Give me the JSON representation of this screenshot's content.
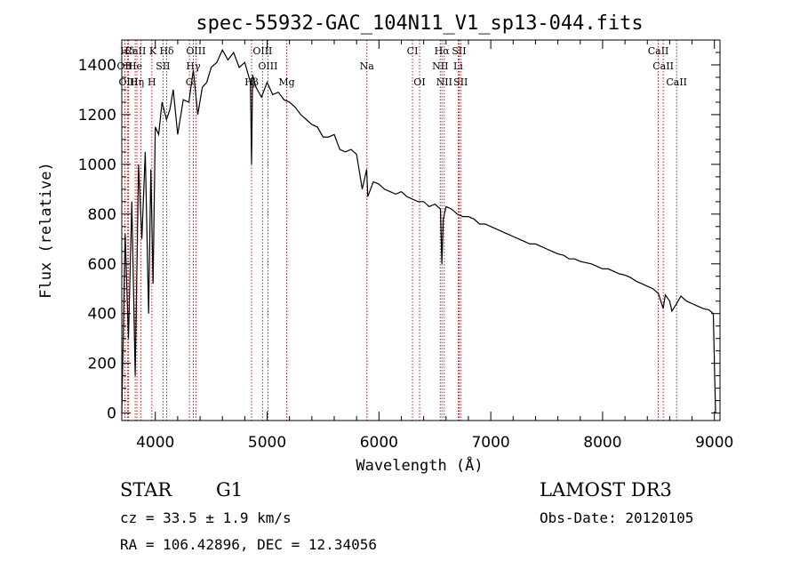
{
  "chart_data": {
    "type": "line",
    "title": "spec-55932-GAC_104N11_V1_sp13-044.fits",
    "xlabel": "Wavelength (Å)",
    "ylabel": "Flux (relative)",
    "xlim": [
      3700,
      9050
    ],
    "ylim": [
      -30,
      1500
    ],
    "xticks": [
      4000,
      5000,
      6000,
      7000,
      8000,
      9000
    ],
    "yticks": [
      0,
      200,
      400,
      600,
      800,
      1000,
      1200,
      1400
    ],
    "series": [
      {
        "name": "flux",
        "x": [
          3700,
          3730,
          3760,
          3790,
          3820,
          3850,
          3880,
          3910,
          3940,
          3960,
          3980,
          4000,
          4030,
          4060,
          4100,
          4130,
          4160,
          4200,
          4250,
          4300,
          4340,
          4380,
          4420,
          4460,
          4500,
          4550,
          4600,
          4650,
          4700,
          4750,
          4800,
          4850,
          4861,
          4870,
          4900,
          4950,
          5000,
          5050,
          5100,
          5150,
          5200,
          5250,
          5300,
          5350,
          5400,
          5450,
          5500,
          5550,
          5600,
          5650,
          5700,
          5750,
          5800,
          5850,
          5890,
          5900,
          5950,
          6000,
          6050,
          6100,
          6150,
          6200,
          6250,
          6300,
          6350,
          6400,
          6450,
          6500,
          6550,
          6563,
          6575,
          6600,
          6650,
          6700,
          6750,
          6800,
          6850,
          6900,
          6950,
          7000,
          7050,
          7100,
          7150,
          7200,
          7250,
          7300,
          7350,
          7400,
          7450,
          7500,
          7550,
          7600,
          7650,
          7700,
          7750,
          7800,
          7850,
          7900,
          7950,
          8000,
          8050,
          8100,
          8150,
          8200,
          8250,
          8300,
          8350,
          8400,
          8450,
          8500,
          8542,
          8560,
          8600,
          8620,
          8662,
          8700,
          8750,
          8800,
          8850,
          8900,
          8950,
          8990,
          9000,
          9010
        ],
        "y": [
          0,
          720,
          300,
          850,
          150,
          1000,
          700,
          1050,
          400,
          980,
          520,
          1150,
          1120,
          1250,
          1180,
          1220,
          1300,
          1120,
          1260,
          1250,
          1380,
          1200,
          1310,
          1330,
          1390,
          1410,
          1460,
          1420,
          1450,
          1390,
          1410,
          1330,
          1000,
          1360,
          1310,
          1270,
          1330,
          1280,
          1290,
          1260,
          1250,
          1230,
          1200,
          1180,
          1160,
          1150,
          1110,
          1110,
          1120,
          1060,
          1050,
          1060,
          1040,
          900,
          980,
          870,
          930,
          920,
          900,
          890,
          880,
          890,
          870,
          860,
          850,
          850,
          830,
          840,
          820,
          600,
          780,
          830,
          820,
          800,
          790,
          790,
          780,
          760,
          760,
          750,
          740,
          730,
          720,
          710,
          700,
          690,
          680,
          680,
          670,
          660,
          650,
          640,
          635,
          620,
          620,
          610,
          605,
          600,
          590,
          580,
          580,
          570,
          560,
          555,
          545,
          530,
          520,
          510,
          500,
          480,
          420,
          475,
          450,
          410,
          440,
          470,
          450,
          440,
          430,
          420,
          415,
          400,
          200,
          0
        ]
      }
    ],
    "lines": [
      {
        "name": "Hδ",
        "x": 3750,
        "row": 1
      },
      {
        "name": "CaII K",
        "x": 3870,
        "row": 1
      },
      {
        "name": "Hδ",
        "x": 4102,
        "row": 1
      },
      {
        "name": "OIII",
        "x": 4363,
        "row": 1
      },
      {
        "name": "OIII",
        "x": 4959,
        "row": 1
      },
      {
        "name": "CI",
        "x": 6300,
        "row": 1
      },
      {
        "name": "Hα",
        "x": 6563,
        "row": 1
      },
      {
        "name": "SII",
        "x": 6717,
        "row": 1
      },
      {
        "name": "CaII",
        "x": 8498,
        "row": 1
      },
      {
        "name": "OII",
        "x": 3727,
        "row": 2
      },
      {
        "name": "He",
        "x": 3820,
        "row": 2
      },
      {
        "name": "SII",
        "x": 4069,
        "row": 2
      },
      {
        "name": "Hγ",
        "x": 4340,
        "row": 2
      },
      {
        "name": "OIII",
        "x": 5007,
        "row": 2
      },
      {
        "name": "Na",
        "x": 5892,
        "row": 2
      },
      {
        "name": "NII",
        "x": 6548,
        "row": 2
      },
      {
        "name": "Li",
        "x": 6708,
        "row": 2
      },
      {
        "name": "CaII",
        "x": 8542,
        "row": 2
      },
      {
        "name": "OIII",
        "x": 3760,
        "row": 3
      },
      {
        "name": "Hη",
        "x": 3835,
        "row": 3
      },
      {
        "name": "H",
        "x": 3969,
        "row": 3
      },
      {
        "name": "G",
        "x": 4305,
        "row": 3
      },
      {
        "name": "Hβ",
        "x": 4861,
        "row": 3
      },
      {
        "name": "Mg",
        "x": 5175,
        "row": 3
      },
      {
        "name": "OI",
        "x": 6363,
        "row": 3
      },
      {
        "name": "NII",
        "x": 6584,
        "row": 3
      },
      {
        "name": "SII",
        "x": 6731,
        "row": 3
      },
      {
        "name": "CaII",
        "x": 8662,
        "row": 3
      }
    ]
  },
  "footer": {
    "object_type": "STAR",
    "subclass": "G1",
    "survey": "LAMOST DR3",
    "cz": "cz = 33.5 ± 1.9 km/s",
    "obs_date": "Obs-Date: 20120105",
    "coords": "RA = 106.42896, DEC =  12.34056"
  }
}
